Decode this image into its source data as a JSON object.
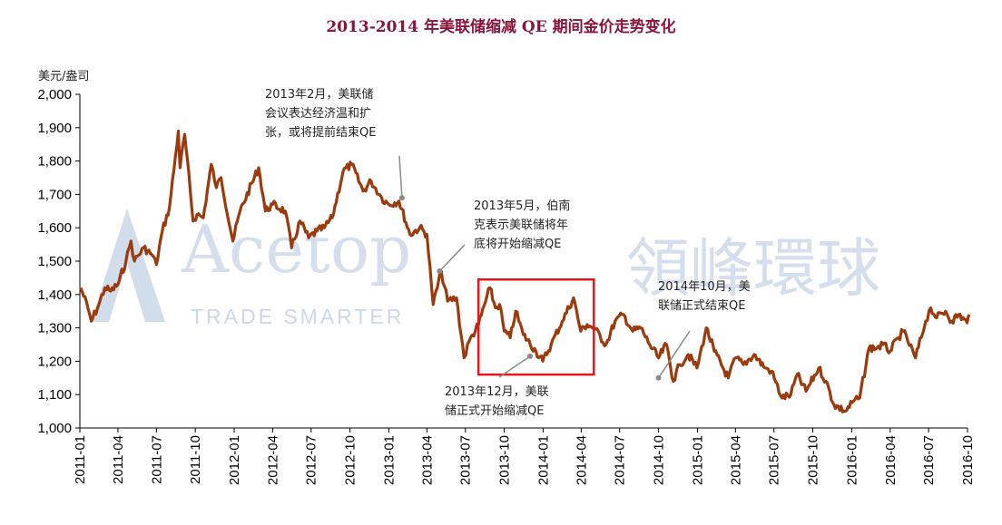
{
  "chart_data": {
    "type": "line",
    "title": "2013-2014 年美联储缩减 QE 期间金价走势变化",
    "ylabel": "美元/盎司",
    "ylim": [
      1000,
      2000
    ],
    "yticks": [
      "2,000",
      "1,900",
      "1,800",
      "1,700",
      "1,600",
      "1,500",
      "1,400",
      "1,300",
      "1,200",
      "1,100",
      "1,000"
    ],
    "ytick_values": [
      2000,
      1900,
      1800,
      1700,
      1600,
      1500,
      1400,
      1300,
      1200,
      1100,
      1000
    ],
    "xticks": [
      "2011-01",
      "2011-04",
      "2011-07",
      "2011-10",
      "2012-01",
      "2012-04",
      "2012-07",
      "2012-10",
      "2013-01",
      "2013-04",
      "2013-07",
      "2013-10",
      "2014-01",
      "2014-04",
      "2014-07",
      "2014-10",
      "2015-01",
      "2015-04",
      "2015-07",
      "2015-10",
      "2016-01",
      "2016-04",
      "2016-07",
      "2016-10"
    ],
    "grid": false,
    "line_color": "#9b3a0c",
    "highlight_color": "#e8141e",
    "highlight_range": [
      "2013-08",
      "2014-05"
    ],
    "series": [
      {
        "values": [
          [
            "2011-01-03",
            1420
          ],
          [
            "2011-01-20",
            1360
          ],
          [
            "2011-01-28",
            1320
          ],
          [
            "2011-02-15",
            1370
          ],
          [
            "2011-03-01",
            1420
          ],
          [
            "2011-03-15",
            1410
          ],
          [
            "2011-04-01",
            1430
          ],
          [
            "2011-04-20",
            1500
          ],
          [
            "2011-05-02",
            1560
          ],
          [
            "2011-05-10",
            1500
          ],
          [
            "2011-06-01",
            1540
          ],
          [
            "2011-06-20",
            1520
          ],
          [
            "2011-07-01",
            1490
          ],
          [
            "2011-07-15",
            1590
          ],
          [
            "2011-08-01",
            1660
          ],
          [
            "2011-08-22",
            1890
          ],
          [
            "2011-08-26",
            1780
          ],
          [
            "2011-09-06",
            1880
          ],
          [
            "2011-09-26",
            1620
          ],
          [
            "2011-10-05",
            1640
          ],
          [
            "2011-10-20",
            1630
          ],
          [
            "2011-11-08",
            1790
          ],
          [
            "2011-11-20",
            1720
          ],
          [
            "2011-12-01",
            1750
          ],
          [
            "2011-12-29",
            1560
          ],
          [
            "2012-01-15",
            1650
          ],
          [
            "2012-02-28",
            1780
          ],
          [
            "2012-03-15",
            1650
          ],
          [
            "2012-04-01",
            1670
          ],
          [
            "2012-05-01",
            1650
          ],
          [
            "2012-05-16",
            1540
          ],
          [
            "2012-06-05",
            1620
          ],
          [
            "2012-06-25",
            1570
          ],
          [
            "2012-07-15",
            1590
          ],
          [
            "2012-08-01",
            1600
          ],
          [
            "2012-08-20",
            1630
          ],
          [
            "2012-09-15",
            1770
          ],
          [
            "2012-10-05",
            1790
          ],
          [
            "2012-11-01",
            1710
          ],
          [
            "2012-11-20",
            1740
          ],
          [
            "2012-12-15",
            1690
          ],
          [
            "2013-01-01",
            1670
          ],
          [
            "2013-01-25",
            1680
          ],
          [
            "2013-02-20",
            1580
          ],
          [
            "2013-03-15",
            1600
          ],
          [
            "2013-04-01",
            1580
          ],
          [
            "2013-04-16",
            1370
          ],
          [
            "2013-05-05",
            1470
          ],
          [
            "2013-05-20",
            1380
          ],
          [
            "2013-06-10",
            1390
          ],
          [
            "2013-06-28",
            1210
          ],
          [
            "2013-07-10",
            1260
          ],
          [
            "2013-08-01",
            1310
          ],
          [
            "2013-08-28",
            1420
          ],
          [
            "2013-09-10",
            1360
          ],
          [
            "2013-09-20",
            1370
          ],
          [
            "2013-10-01",
            1290
          ],
          [
            "2013-10-15",
            1270
          ],
          [
            "2013-10-28",
            1350
          ],
          [
            "2013-11-15",
            1280
          ],
          [
            "2013-12-15",
            1230
          ],
          [
            "2013-12-31",
            1200
          ],
          [
            "2014-01-20",
            1250
          ],
          [
            "2014-02-15",
            1320
          ],
          [
            "2014-03-14",
            1390
          ],
          [
            "2014-03-31",
            1290
          ],
          [
            "2014-04-15",
            1310
          ],
          [
            "2014-05-01",
            1300
          ],
          [
            "2014-05-30",
            1250
          ],
          [
            "2014-06-20",
            1320
          ],
          [
            "2014-07-10",
            1340
          ],
          [
            "2014-08-01",
            1290
          ],
          [
            "2014-08-20",
            1300
          ],
          [
            "2014-09-10",
            1250
          ],
          [
            "2014-10-01",
            1210
          ],
          [
            "2014-10-20",
            1250
          ],
          [
            "2014-11-05",
            1140
          ],
          [
            "2014-11-20",
            1190
          ],
          [
            "2014-12-10",
            1220
          ],
          [
            "2014-12-31",
            1180
          ],
          [
            "2015-01-22",
            1300
          ],
          [
            "2015-02-10",
            1230
          ],
          [
            "2015-03-15",
            1150
          ],
          [
            "2015-04-01",
            1210
          ],
          [
            "2015-04-20",
            1190
          ],
          [
            "2015-05-15",
            1220
          ],
          [
            "2015-06-10",
            1180
          ],
          [
            "2015-06-25",
            1170
          ],
          [
            "2015-07-20",
            1090
          ],
          [
            "2015-08-10",
            1100
          ],
          [
            "2015-08-25",
            1160
          ],
          [
            "2015-09-15",
            1110
          ],
          [
            "2015-10-15",
            1180
          ],
          [
            "2015-11-01",
            1140
          ],
          [
            "2015-11-20",
            1070
          ],
          [
            "2015-12-17",
            1050
          ],
          [
            "2016-01-05",
            1080
          ],
          [
            "2016-01-20",
            1090
          ],
          [
            "2016-02-11",
            1240
          ],
          [
            "2016-03-01",
            1240
          ],
          [
            "2016-03-15",
            1250
          ],
          [
            "2016-04-01",
            1230
          ],
          [
            "2016-04-20",
            1270
          ],
          [
            "2016-05-02",
            1290
          ],
          [
            "2016-05-31",
            1210
          ],
          [
            "2016-06-24",
            1320
          ],
          [
            "2016-07-06",
            1360
          ],
          [
            "2016-07-20",
            1330
          ],
          [
            "2016-08-10",
            1350
          ],
          [
            "2016-08-25",
            1320
          ],
          [
            "2016-09-10",
            1340
          ],
          [
            "2016-09-30",
            1315
          ],
          [
            "2016-10-05",
            1340
          ]
        ]
      }
    ],
    "annotations": [
      {
        "date": "2013-02",
        "value": 1690,
        "lines": [
          "2013年2月，美联储",
          "会议表达经济温和扩",
          "张，或将提前结束QE"
        ]
      },
      {
        "date": "2013-05",
        "value": 1470,
        "lines": [
          "2013年5月，伯南",
          "克表示美联储将年",
          "底将开始缩减QE"
        ]
      },
      {
        "date": "2013-12",
        "value": 1215,
        "lines": [
          "2013年12月，美联",
          "储正式开始缩减QE"
        ]
      },
      {
        "date": "2014-10",
        "value": 1150,
        "lines": [
          "2014年10月，美",
          "联储正式结束QE"
        ]
      }
    ]
  },
  "watermark": {
    "brand_en": "Acetop",
    "brand_cn": "領峰環球",
    "tagline": "TRADE SMARTER"
  }
}
